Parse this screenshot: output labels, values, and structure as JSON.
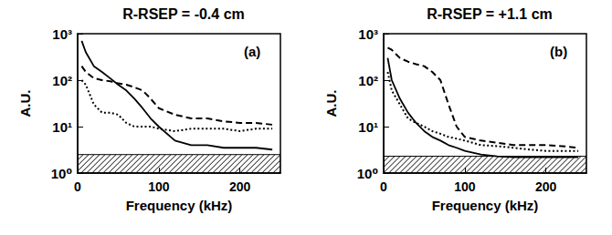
{
  "chart_data": [
    {
      "type": "line",
      "title": "R-RSEP = -0.4 cm",
      "label": "(a)",
      "x_label": "Frequency (kHz)",
      "y_label": "A.U.",
      "log": "y",
      "xlim": [
        0,
        250
      ],
      "xticks": [
        0,
        100,
        200
      ],
      "ylim": [
        1,
        1000
      ],
      "yticks": [
        {
          "value": 1,
          "label": "10⁰"
        },
        {
          "value": 10,
          "label": "10¹"
        },
        {
          "value": 100,
          "label": "10²"
        },
        {
          "value": 1000,
          "label": "10³"
        }
      ],
      "noise_level": [
        1,
        2.5
      ],
      "x": [
        5,
        10,
        20,
        30,
        40,
        50,
        60,
        70,
        80,
        90,
        100,
        120,
        140,
        160,
        180,
        200,
        220,
        240
      ],
      "series": [
        {
          "color": "#000000",
          "line_style": "solid",
          "values": [
            700,
            400,
            200,
            150,
            110,
            80,
            60,
            40,
            25,
            15,
            10,
            5,
            4,
            4,
            3.5,
            3.5,
            3.5,
            3.2
          ]
        },
        {
          "color": "#000000",
          "line_style": "dashed",
          "values": [
            200,
            150,
            110,
            100,
            95,
            85,
            80,
            70,
            60,
            40,
            25,
            18,
            15,
            15,
            13,
            12,
            12,
            11
          ]
        },
        {
          "color": "#000000",
          "line_style": "dotted",
          "values": [
            100,
            80,
            30,
            20,
            20,
            18,
            12,
            10,
            10,
            10,
            9,
            8,
            9,
            9,
            9,
            8,
            9,
            9
          ]
        }
      ]
    },
    {
      "type": "line",
      "title": "R-RSEP = +1.1 cm",
      "label": "(b)",
      "x_label": "Frequency (kHz)",
      "y_label": "A.U.",
      "log": "y",
      "xlim": [
        0,
        250
      ],
      "xticks": [
        0,
        100,
        200
      ],
      "ylim": [
        1,
        1000
      ],
      "yticks": [
        {
          "value": 1,
          "label": "10⁰"
        },
        {
          "value": 10,
          "label": "10¹"
        },
        {
          "value": 100,
          "label": "10²"
        },
        {
          "value": 1000,
          "label": "10³"
        }
      ],
      "noise_level": [
        1,
        2.3
      ],
      "x": [
        5,
        10,
        20,
        30,
        40,
        50,
        60,
        70,
        80,
        90,
        100,
        120,
        140,
        160,
        180,
        200,
        220,
        240
      ],
      "series": [
        {
          "color": "#000000",
          "line_style": "solid",
          "values": [
            300,
            100,
            40,
            20,
            12,
            8,
            6,
            5,
            4,
            3.5,
            3,
            2.5,
            2.3,
            2.2,
            2.2,
            2.2,
            2.2,
            2.2
          ]
        },
        {
          "color": "#000000",
          "line_style": "dashed",
          "values": [
            500,
            450,
            300,
            250,
            220,
            200,
            150,
            100,
            30,
            10,
            6,
            5,
            4.5,
            4,
            4,
            4,
            3.8,
            3.5
          ]
        },
        {
          "color": "#000000",
          "line_style": "dotted",
          "values": [
            150,
            60,
            30,
            15,
            12,
            10,
            8,
            7,
            6,
            5.5,
            5,
            4,
            3.8,
            3.5,
            3.2,
            3,
            3,
            3
          ]
        }
      ]
    }
  ]
}
